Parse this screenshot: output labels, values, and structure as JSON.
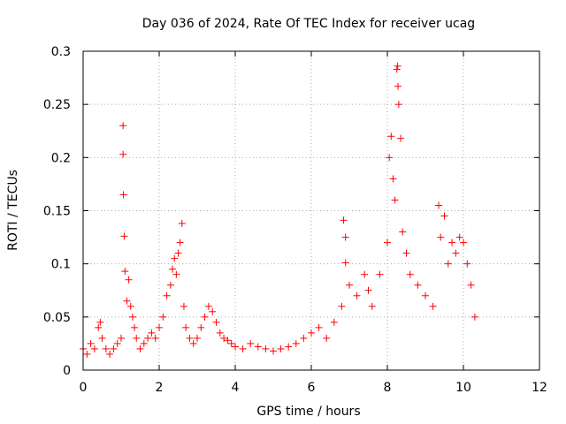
{
  "chart_data": {
    "type": "scatter",
    "title": "Day 036 of 2024, Rate Of TEC Index for receiver ucag",
    "xlabel": "GPS time / hours",
    "ylabel": "ROTI / TECUs",
    "xlim": [
      0,
      12
    ],
    "ylim": [
      0,
      0.3
    ],
    "x_ticks": [
      0,
      2,
      4,
      6,
      8,
      10,
      12
    ],
    "x_tick_labels": [
      "0",
      "2",
      "4",
      "6",
      "8",
      "10",
      "12"
    ],
    "y_ticks": [
      0,
      0.05,
      0.1,
      0.15,
      0.2,
      0.25,
      0.3
    ],
    "y_tick_labels": [
      "0",
      "0.05",
      "0.1",
      "0.15",
      "0.2",
      "0.25",
      "0.3"
    ],
    "grid": true,
    "marker": "+",
    "color": "#ff0000",
    "series": [
      {
        "name": "ROTI",
        "x": [
          0.0,
          0.1,
          0.2,
          0.3,
          0.4,
          0.45,
          0.5,
          0.6,
          0.7,
          0.8,
          0.9,
          1.0,
          1.05,
          1.05,
          1.06,
          1.08,
          1.1,
          1.15,
          1.2,
          1.25,
          1.3,
          1.35,
          1.4,
          1.5,
          1.6,
          1.7,
          1.8,
          1.9,
          2.0,
          2.1,
          2.2,
          2.3,
          2.35,
          2.4,
          2.45,
          2.5,
          2.55,
          2.6,
          2.65,
          2.7,
          2.8,
          2.9,
          3.0,
          3.1,
          3.2,
          3.3,
          3.4,
          3.5,
          3.6,
          3.7,
          3.8,
          3.9,
          4.0,
          4.2,
          4.4,
          4.6,
          4.8,
          5.0,
          5.2,
          5.4,
          5.6,
          5.8,
          6.0,
          6.2,
          6.4,
          6.6,
          6.8,
          6.85,
          6.9,
          6.9,
          7.0,
          7.2,
          7.4,
          7.5,
          7.6,
          7.8,
          8.0,
          8.05,
          8.1,
          8.15,
          8.2,
          8.25,
          8.27,
          8.28,
          8.3,
          8.35,
          8.4,
          8.5,
          8.6,
          8.8,
          9.0,
          9.2,
          9.35,
          9.4,
          9.5,
          9.6,
          9.7,
          9.8,
          9.9,
          10.0,
          10.1,
          10.2,
          10.3
        ],
        "values": [
          0.02,
          0.015,
          0.025,
          0.02,
          0.04,
          0.045,
          0.03,
          0.02,
          0.015,
          0.02,
          0.025,
          0.03,
          0.23,
          0.203,
          0.165,
          0.126,
          0.093,
          0.065,
          0.085,
          0.06,
          0.05,
          0.04,
          0.03,
          0.02,
          0.025,
          0.03,
          0.035,
          0.03,
          0.04,
          0.05,
          0.07,
          0.08,
          0.095,
          0.105,
          0.09,
          0.11,
          0.12,
          0.138,
          0.06,
          0.04,
          0.03,
          0.025,
          0.03,
          0.04,
          0.05,
          0.06,
          0.055,
          0.045,
          0.035,
          0.03,
          0.028,
          0.025,
          0.022,
          0.02,
          0.025,
          0.022,
          0.02,
          0.018,
          0.02,
          0.022,
          0.025,
          0.03,
          0.035,
          0.04,
          0.03,
          0.045,
          0.06,
          0.141,
          0.125,
          0.101,
          0.08,
          0.07,
          0.09,
          0.075,
          0.06,
          0.09,
          0.12,
          0.2,
          0.22,
          0.18,
          0.16,
          0.283,
          0.286,
          0.267,
          0.25,
          0.218,
          0.13,
          0.11,
          0.09,
          0.08,
          0.07,
          0.06,
          0.155,
          0.125,
          0.145,
          0.1,
          0.12,
          0.11,
          0.125,
          0.12,
          0.1,
          0.08,
          0.05
        ]
      }
    ]
  }
}
